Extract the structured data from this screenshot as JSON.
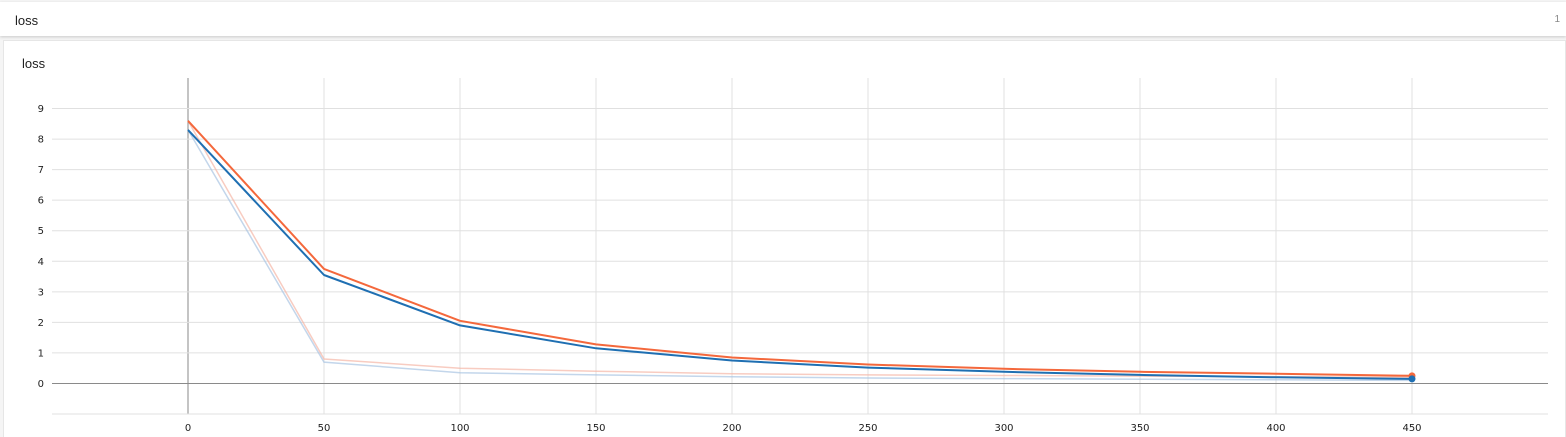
{
  "header": {
    "title": "loss",
    "count": "1"
  },
  "card": {
    "title": "loss"
  },
  "chart_data": {
    "type": "line",
    "title": "loss",
    "xlabel": "",
    "ylabel": "",
    "xlim": [
      -50,
      500
    ],
    "ylim": [
      -1,
      10
    ],
    "xticks": [
      0,
      50,
      100,
      150,
      200,
      250,
      300,
      350,
      400,
      450
    ],
    "yticks": [
      0,
      1,
      2,
      3,
      4,
      5,
      6,
      7,
      8,
      9
    ],
    "grid": true,
    "series": [
      {
        "color": "#f4683c",
        "raw_color": "#f5b7a6",
        "x": [
          0,
          50,
          100,
          150,
          200,
          250,
          300,
          350,
          400,
          450
        ],
        "smoothed": [
          8.6,
          3.75,
          2.05,
          1.28,
          0.85,
          0.62,
          0.48,
          0.38,
          0.32,
          0.25
        ],
        "raw": [
          8.6,
          0.8,
          0.5,
          0.4,
          0.32,
          0.28,
          0.26,
          0.24,
          0.22,
          0.2
        ]
      },
      {
        "color": "#1f6fb2",
        "raw_color": "#a9c5e3",
        "x": [
          0,
          50,
          100,
          150,
          200,
          250,
          300,
          350,
          400,
          450
        ],
        "smoothed": [
          8.3,
          3.55,
          1.9,
          1.15,
          0.75,
          0.52,
          0.38,
          0.28,
          0.2,
          0.15
        ],
        "raw": [
          8.3,
          0.7,
          0.35,
          0.28,
          0.22,
          0.18,
          0.16,
          0.14,
          0.12,
          0.1
        ]
      }
    ]
  }
}
